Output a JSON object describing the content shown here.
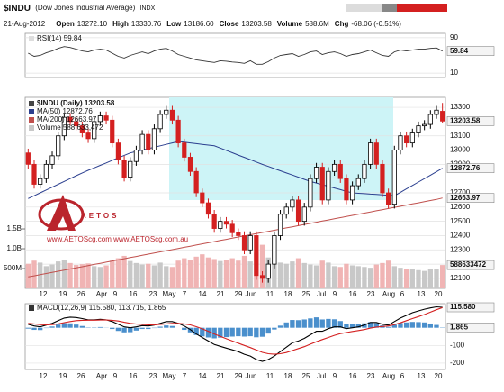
{
  "header": {
    "symbol": "$INDU",
    "name": "(Dow Jones Industrial Average)",
    "exchange": "INDX",
    "date": "21-Aug-2012",
    "fields": [
      {
        "label": "Open",
        "value": "13272.10"
      },
      {
        "label": "High",
        "value": "13330.76"
      },
      {
        "label": "Low",
        "value": "13186.60"
      },
      {
        "label": "Close",
        "value": "13203.58"
      },
      {
        "label": "Volume",
        "value": "588.6M"
      },
      {
        "label": "Chg",
        "value": "-68.06 (-0.51%)"
      }
    ]
  },
  "watermark": {
    "brand": "AETOS",
    "urls": "www.AETOScg.com  www.AETOScg.com.au"
  },
  "x_labels": [
    "12",
    "19",
    "26",
    "Apr",
    "9",
    "16",
    "23",
    "May",
    "7",
    "14",
    "21",
    "29",
    "Jun",
    "11",
    "18",
    "25",
    "Jul",
    "9",
    "16",
    "23",
    "Aug",
    "6",
    "13",
    "20"
  ],
  "chart_data": [
    {
      "type": "line",
      "title": "RSI(14) 59.84",
      "ylim": [
        0,
        100
      ],
      "yticks": [
        90,
        10
      ],
      "grid": true,
      "series": [
        {
          "color": "#333333",
          "values": [
            55,
            48,
            50,
            56,
            60,
            66,
            70,
            68,
            64,
            60,
            58,
            62,
            64,
            62,
            55,
            48,
            44,
            50,
            54,
            58,
            54,
            60,
            64,
            66,
            60,
            52,
            48,
            44,
            40,
            38,
            36,
            34,
            38,
            37,
            35,
            34,
            32,
            38,
            30,
            30,
            36,
            44,
            50,
            52,
            54,
            48,
            52,
            58,
            60,
            52,
            56,
            58,
            54,
            48,
            52,
            54,
            58,
            62,
            56,
            50,
            48,
            58,
            62,
            60,
            62,
            64,
            64,
            66,
            67,
            59.84
          ]
        }
      ],
      "value_boxes": [
        {
          "value": 59.84,
          "label": "59.84"
        }
      ]
    },
    {
      "type": "candlestick",
      "title": "$INDU (Daily) 13203.58",
      "up_color": "#000000",
      "down_color": "#d42020",
      "ylim": [
        12030,
        13370
      ],
      "yticks": [
        13300,
        13100,
        13000,
        12900,
        12700,
        12600,
        12500,
        12400,
        12300,
        12200,
        12100
      ],
      "grid": true,
      "open": [
        12980,
        12900,
        12760,
        12800,
        12900,
        12960,
        13100,
        13230,
        13200,
        13170,
        13120,
        13080,
        13200,
        13240,
        13210,
        13050,
        12930,
        12810,
        12920,
        13000,
        13110,
        13000,
        13150,
        13250,
        13280,
        13210,
        13050,
        12950,
        12850,
        12700,
        12630,
        12550,
        12450,
        12500,
        12480,
        12420,
        12400,
        12300,
        12400,
        12120,
        12100,
        12200,
        12400,
        12550,
        12600,
        12650,
        12500,
        12600,
        12800,
        12880,
        12650,
        12850,
        12900,
        12800,
        12650,
        12750,
        12800,
        12900,
        13050,
        12900,
        12700,
        12620,
        13000,
        13100,
        13050,
        13120,
        13170,
        13180,
        13250,
        13272.1
      ],
      "high": [
        13010,
        12930,
        12830,
        12930,
        12990,
        13130,
        13260,
        13260,
        13230,
        13200,
        13150,
        13230,
        13270,
        13270,
        13240,
        13080,
        12960,
        12950,
        13030,
        13140,
        13140,
        13180,
        13280,
        13310,
        13310,
        13240,
        13080,
        12980,
        12880,
        12730,
        12660,
        12580,
        12530,
        12530,
        12510,
        12450,
        12430,
        12430,
        12430,
        12150,
        12230,
        12430,
        12580,
        12630,
        12680,
        12680,
        12630,
        12830,
        12910,
        12910,
        12880,
        12930,
        12930,
        12830,
        12780,
        12830,
        12930,
        13080,
        13080,
        12930,
        12730,
        13030,
        13130,
        13130,
        13150,
        13200,
        13210,
        13280,
        13310,
        13330.76
      ],
      "low": [
        12870,
        12730,
        12730,
        12770,
        12870,
        12930,
        13070,
        13170,
        13140,
        13090,
        13050,
        13050,
        13170,
        13180,
        13020,
        12900,
        12780,
        12780,
        12890,
        12970,
        12970,
        12970,
        13120,
        13220,
        13180,
        13020,
        12920,
        12820,
        12670,
        12600,
        12520,
        12420,
        12420,
        12450,
        12390,
        12370,
        12270,
        12270,
        12090,
        12070,
        12070,
        12170,
        12370,
        12520,
        12570,
        12470,
        12470,
        12570,
        12770,
        12620,
        12620,
        12820,
        12770,
        12620,
        12620,
        12720,
        12770,
        12870,
        12870,
        12670,
        12590,
        12590,
        12970,
        13020,
        13020,
        13090,
        13140,
        13150,
        13220,
        13186.6
      ],
      "close": [
        12900,
        12760,
        12800,
        12900,
        12960,
        13100,
        13230,
        13200,
        13170,
        13120,
        13080,
        13200,
        13240,
        13210,
        13050,
        12930,
        12810,
        12920,
        13000,
        13110,
        13000,
        13150,
        13250,
        13280,
        13210,
        13050,
        12950,
        12850,
        12700,
        12630,
        12550,
        12450,
        12500,
        12480,
        12420,
        12400,
        12300,
        12400,
        12120,
        12100,
        12200,
        12400,
        12550,
        12600,
        12650,
        12500,
        12600,
        12800,
        12880,
        12650,
        12850,
        12900,
        12800,
        12650,
        12750,
        12800,
        12900,
        13050,
        12900,
        12700,
        12620,
        13000,
        13100,
        13050,
        13120,
        13170,
        13180,
        13250,
        13280,
        13203.58
      ],
      "series": [
        {
          "name": "MA(50) 12872.76",
          "color": "#2b3f8f",
          "values": [
            12660,
            12680,
            12700,
            12720,
            12740,
            12760,
            12780,
            12800,
            12820,
            12840,
            12858,
            12875,
            12893,
            12910,
            12928,
            12945,
            12963,
            12980,
            12990,
            13000,
            13010,
            13020,
            13030,
            13040,
            13050,
            13060,
            13055,
            13050,
            13045,
            13040,
            13035,
            13030,
            13014,
            12998,
            12981,
            12965,
            12949,
            12933,
            12916,
            12900,
            12885,
            12870,
            12855,
            12840,
            12825,
            12810,
            12795,
            12780,
            12769,
            12757,
            12746,
            12734,
            12723,
            12711,
            12700,
            12697,
            12694,
            12691,
            12689,
            12686,
            12683,
            12680,
            12704,
            12728,
            12752,
            12776,
            12800,
            12824,
            12848,
            12872.76
          ]
        },
        {
          "name": "MA(200) 12663.97",
          "color": "#c0504d",
          "values": [
            12110,
            12118,
            12126,
            12134,
            12142,
            12150,
            12158,
            12166,
            12174,
            12182,
            12190,
            12198,
            12206,
            12214,
            12222,
            12230,
            12238,
            12246,
            12254,
            12262,
            12270,
            12278,
            12286,
            12294,
            12302,
            12310,
            12318,
            12326,
            12334,
            12342,
            12350,
            12358,
            12366,
            12374,
            12382,
            12390,
            12398,
            12406,
            12414,
            12422,
            12430,
            12438,
            12446,
            12454,
            12462,
            12470,
            12478,
            12486,
            12494,
            12502,
            12510,
            12518,
            12526,
            12534,
            12542,
            12550,
            12558,
            12566,
            12574,
            12582,
            12590,
            12598,
            12606,
            12614,
            12622,
            12630,
            12638,
            12646,
            12654,
            12663.97
          ]
        }
      ],
      "value_boxes": [
        {
          "value": 13203.58,
          "label": "13203.58"
        },
        {
          "value": 12872.76,
          "label": "12872.76"
        },
        {
          "value": 12663.97,
          "label": "12663.97"
        }
      ],
      "volume": {
        "name": "Volume 588,633,472",
        "up_color": "#c8c8c8",
        "down_color": "#f0b4b4",
        "ylim": [
          0,
          4820000000
        ],
        "yticks": [
          {
            "value": 500000000,
            "label": "500M"
          },
          {
            "value": 1000000000,
            "label": "1.0B"
          },
          {
            "value": 1500000000,
            "label": "1.5B"
          }
        ],
        "values": [
          620000000,
          700000000,
          650000000,
          560000000,
          600000000,
          680000000,
          720000000,
          640000000,
          590000000,
          610000000,
          630000000,
          560000000,
          540000000,
          580000000,
          700000000,
          760000000,
          820000000,
          690000000,
          640000000,
          600000000,
          620000000,
          580000000,
          650000000,
          560000000,
          540000000,
          700000000,
          760000000,
          720000000,
          800000000,
          860000000,
          780000000,
          740000000,
          690000000,
          720000000,
          760000000,
          700000000,
          820000000,
          680000000,
          900000000,
          1100000000,
          780000000,
          700000000,
          650000000,
          620000000,
          680000000,
          760000000,
          640000000,
          600000000,
          580000000,
          700000000,
          650000000,
          560000000,
          540000000,
          620000000,
          580000000,
          560000000,
          540000000,
          520000000,
          600000000,
          640000000,
          700000000,
          560000000,
          520000000,
          480000000,
          500000000,
          460000000,
          440000000,
          480000000,
          500000000,
          588633472
        ],
        "value_boxes": [
          {
            "value": 588633472,
            "label": "588633472"
          }
        ]
      }
    },
    {
      "type": "macd",
      "title": "MACD(12,26,9) 115.580, 113.715, 1.865",
      "ylim": [
        -236,
        136
      ],
      "yticks": [
        -100,
        -200
      ],
      "grid": true,
      "series": [
        {
          "color": "#000000",
          "values": [
            20,
            10,
            5,
            15,
            25,
            40,
            55,
            60,
            58,
            52,
            45,
            45,
            48,
            45,
            35,
            20,
            5,
            0,
            5,
            12,
            10,
            15,
            25,
            35,
            35,
            25,
            10,
            -10,
            -35,
            -55,
            -75,
            -95,
            -105,
            -115,
            -125,
            -135,
            -150,
            -160,
            -180,
            -190,
            -180,
            -160,
            -135,
            -110,
            -85,
            -75,
            -60,
            -40,
            -20,
            -20,
            -5,
            5,
            5,
            -5,
            0,
            5,
            15,
            30,
            30,
            20,
            15,
            35,
            55,
            70,
            85,
            95,
            105,
            112,
            118,
            115.58
          ]
        },
        {
          "color": "#d42020",
          "values": [
            25,
            22,
            18,
            17,
            18,
            22,
            29,
            35,
            40,
            42,
            43,
            43,
            44,
            44,
            42,
            38,
            31,
            25,
            21,
            19,
            17,
            17,
            19,
            22,
            25,
            25,
            22,
            16,
            6,
            -6,
            -20,
            -35,
            -49,
            -62,
            -75,
            -87,
            -100,
            -112,
            -126,
            -139,
            -147,
            -150,
            -147,
            -140,
            -129,
            -118,
            -107,
            -93,
            -79,
            -67,
            -55,
            -43,
            -33,
            -27,
            -21,
            -16,
            -10,
            -2,
            4,
            7,
            10,
            18,
            28,
            40,
            52,
            63,
            75,
            88,
            102,
            113.715
          ]
        }
      ],
      "histogram": {
        "color": "#4a8fcc",
        "values": [
          -5,
          -12,
          -13,
          -2,
          7,
          18,
          26,
          25,
          18,
          10,
          2,
          2,
          4,
          1,
          -7,
          -18,
          -26,
          -25,
          -16,
          -7,
          -7,
          -2,
          6,
          13,
          10,
          0,
          -12,
          -26,
          -41,
          -49,
          -55,
          -60,
          -56,
          -53,
          -50,
          -48,
          -50,
          -48,
          -54,
          -51,
          -33,
          -10,
          12,
          30,
          44,
          43,
          47,
          53,
          59,
          47,
          50,
          48,
          38,
          22,
          21,
          21,
          25,
          32,
          26,
          13,
          5,
          17,
          27,
          30,
          33,
          32,
          30,
          24,
          16,
          1.865
        ]
      },
      "value_boxes": [
        {
          "value": 115.58,
          "label": "115.580"
        },
        {
          "value": 1.865,
          "label": "1.865"
        }
      ]
    }
  ]
}
